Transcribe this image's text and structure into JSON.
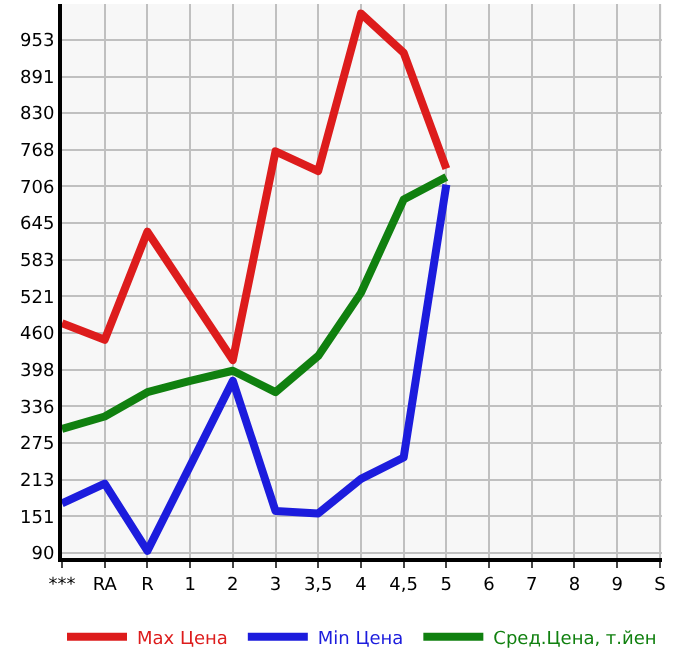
{
  "chart_data": {
    "type": "line",
    "categories": [
      "***",
      "RA",
      "R",
      "1",
      "2",
      "3",
      "3,5",
      "4",
      "4,5",
      "5",
      "6",
      "7",
      "8",
      "9",
      "S"
    ],
    "series": [
      {
        "name": "Max Цена",
        "color": "#dd1c1c",
        "values": [
          476,
          448,
          630,
          522,
          414,
          765,
          732,
          997,
          931,
          736,
          null,
          null,
          null,
          null,
          null
        ]
      },
      {
        "name": "Min Цена",
        "color": "#1c1cdd",
        "values": [
          173,
          206,
          93,
          236,
          379,
          160,
          156,
          214,
          250,
          709,
          null,
          null,
          null,
          null,
          null
        ]
      },
      {
        "name": "Сред.Цена, т.йен",
        "color": "#10800f",
        "values": [
          298,
          319,
          360,
          379,
          396,
          360,
          421,
          527,
          684,
          722,
          null,
          null,
          null,
          null,
          null
        ]
      }
    ],
    "ylim": [
      81,
      1013
    ],
    "yticks": [
      90,
      151,
      213,
      275,
      336,
      398,
      460,
      521,
      583,
      645,
      706,
      768,
      830,
      891,
      953
    ],
    "grid": true,
    "legend": "bottom",
    "marker": "none",
    "line_style": "solid"
  }
}
